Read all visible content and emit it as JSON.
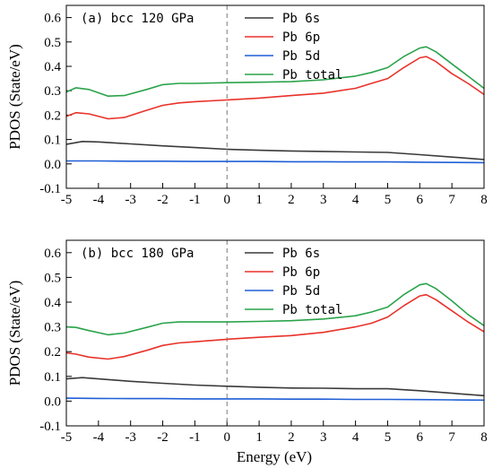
{
  "chart_data": [
    {
      "type": "line",
      "panel_label": "(a) bcc 120 GPa",
      "xlabel": "",
      "ylabel": "PDOS (State/eV)",
      "xlim": [
        -5,
        8
      ],
      "ylim": [
        -0.1,
        0.65
      ],
      "xticks": [
        "-5",
        "-4",
        "-3",
        "-2",
        "-1",
        "0",
        "1",
        "2",
        "3",
        "4",
        "5",
        "6",
        "7",
        "8"
      ],
      "yticks": [
        "-0.1",
        "0.0",
        "0.1",
        "0.2",
        "0.3",
        "0.4",
        "0.5",
        "0.6"
      ],
      "fermi_level": 0,
      "legend_position": "top-right",
      "series": [
        {
          "name": "Pb 6s",
          "color": "#3a3a3a",
          "x": [
            -5,
            -4.5,
            -4,
            -3.5,
            -3,
            -2,
            -1,
            0,
            1,
            2,
            3,
            4,
            5,
            6,
            7,
            8
          ],
          "y": [
            0.08,
            0.092,
            0.09,
            0.086,
            0.082,
            0.074,
            0.067,
            0.06,
            0.056,
            0.053,
            0.051,
            0.049,
            0.047,
            0.038,
            0.028,
            0.018
          ]
        },
        {
          "name": "Pb 6p",
          "color": "#e8322a",
          "x": [
            -5,
            -4.7,
            -4.3,
            -3.7,
            -3.2,
            -2.5,
            -2,
            -1.5,
            -1,
            0,
            1,
            2,
            3,
            4,
            4.5,
            5,
            5.5,
            6,
            6.2,
            6.5,
            7,
            7.5,
            8
          ],
          "y": [
            0.195,
            0.21,
            0.205,
            0.185,
            0.19,
            0.22,
            0.24,
            0.25,
            0.255,
            0.262,
            0.27,
            0.28,
            0.29,
            0.31,
            0.33,
            0.35,
            0.395,
            0.435,
            0.44,
            0.42,
            0.37,
            0.33,
            0.285
          ]
        },
        {
          "name": "Pb 5d",
          "color": "#1f5fd6",
          "x": [
            -5,
            -4,
            -3,
            -2,
            -1,
            0,
            1,
            2,
            3,
            4,
            5,
            6,
            7,
            8
          ],
          "y": [
            0.012,
            0.012,
            0.011,
            0.011,
            0.01,
            0.01,
            0.01,
            0.009,
            0.009,
            0.008,
            0.008,
            0.007,
            0.006,
            0.005
          ]
        },
        {
          "name": "Pb total",
          "color": "#2aa34a",
          "x": [
            -5,
            -4.7,
            -4.3,
            -3.7,
            -3.2,
            -2.5,
            -2,
            -1.5,
            -1,
            0,
            1,
            2,
            3,
            4,
            4.5,
            5,
            5.5,
            6,
            6.2,
            6.5,
            7,
            7.5,
            8
          ],
          "y": [
            0.295,
            0.312,
            0.305,
            0.278,
            0.28,
            0.305,
            0.325,
            0.33,
            0.33,
            0.333,
            0.335,
            0.337,
            0.345,
            0.36,
            0.375,
            0.395,
            0.44,
            0.475,
            0.48,
            0.46,
            0.41,
            0.36,
            0.31
          ]
        }
      ]
    },
    {
      "type": "line",
      "panel_label": "(b) bcc 180 GPa",
      "xlabel": "Energy (eV)",
      "ylabel": "PDOS (State/eV)",
      "xlim": [
        -5,
        8
      ],
      "ylim": [
        -0.1,
        0.65
      ],
      "xticks": [
        "-5",
        "-4",
        "-3",
        "-2",
        "-1",
        "0",
        "1",
        "2",
        "3",
        "4",
        "5",
        "6",
        "7",
        "8"
      ],
      "yticks": [
        "-0.1",
        "0.0",
        "0.1",
        "0.2",
        "0.3",
        "0.4",
        "0.5",
        "0.6"
      ],
      "fermi_level": 0,
      "legend_position": "top-right",
      "series": [
        {
          "name": "Pb 6s",
          "color": "#3a3a3a",
          "x": [
            -5,
            -4.5,
            -4,
            -3.5,
            -3,
            -2,
            -1,
            0,
            1,
            2,
            3,
            4,
            5,
            6,
            7,
            8
          ],
          "y": [
            0.09,
            0.095,
            0.09,
            0.085,
            0.08,
            0.072,
            0.065,
            0.06,
            0.056,
            0.053,
            0.052,
            0.05,
            0.05,
            0.042,
            0.032,
            0.022
          ]
        },
        {
          "name": "Pb 6p",
          "color": "#e8322a",
          "x": [
            -5,
            -4.7,
            -4.3,
            -3.7,
            -3.2,
            -2.5,
            -2,
            -1.5,
            -1,
            0,
            1,
            2,
            3,
            4,
            4.5,
            5,
            5.5,
            6,
            6.2,
            6.5,
            7,
            7.5,
            8
          ],
          "y": [
            0.195,
            0.19,
            0.178,
            0.17,
            0.18,
            0.205,
            0.225,
            0.235,
            0.24,
            0.25,
            0.258,
            0.265,
            0.278,
            0.3,
            0.315,
            0.34,
            0.385,
            0.425,
            0.43,
            0.41,
            0.365,
            0.32,
            0.28
          ]
        },
        {
          "name": "Pb 5d",
          "color": "#1f5fd6",
          "x": [
            -5,
            -4,
            -3,
            -2,
            -1,
            0,
            1,
            2,
            3,
            4,
            5,
            6,
            7,
            8
          ],
          "y": [
            0.012,
            0.011,
            0.01,
            0.01,
            0.009,
            0.009,
            0.009,
            0.008,
            0.008,
            0.007,
            0.007,
            0.006,
            0.005,
            0.004
          ]
        },
        {
          "name": "Pb total",
          "color": "#2aa34a",
          "x": [
            -5,
            -4.7,
            -4.3,
            -3.7,
            -3.2,
            -2.5,
            -2,
            -1.5,
            -1,
            0,
            1,
            2,
            3,
            4,
            4.5,
            5,
            5.5,
            6,
            6.2,
            6.5,
            7,
            7.5,
            8
          ],
          "y": [
            0.3,
            0.298,
            0.285,
            0.268,
            0.275,
            0.298,
            0.315,
            0.32,
            0.32,
            0.32,
            0.322,
            0.325,
            0.332,
            0.345,
            0.36,
            0.38,
            0.43,
            0.47,
            0.475,
            0.455,
            0.405,
            0.35,
            0.305
          ]
        }
      ]
    }
  ]
}
